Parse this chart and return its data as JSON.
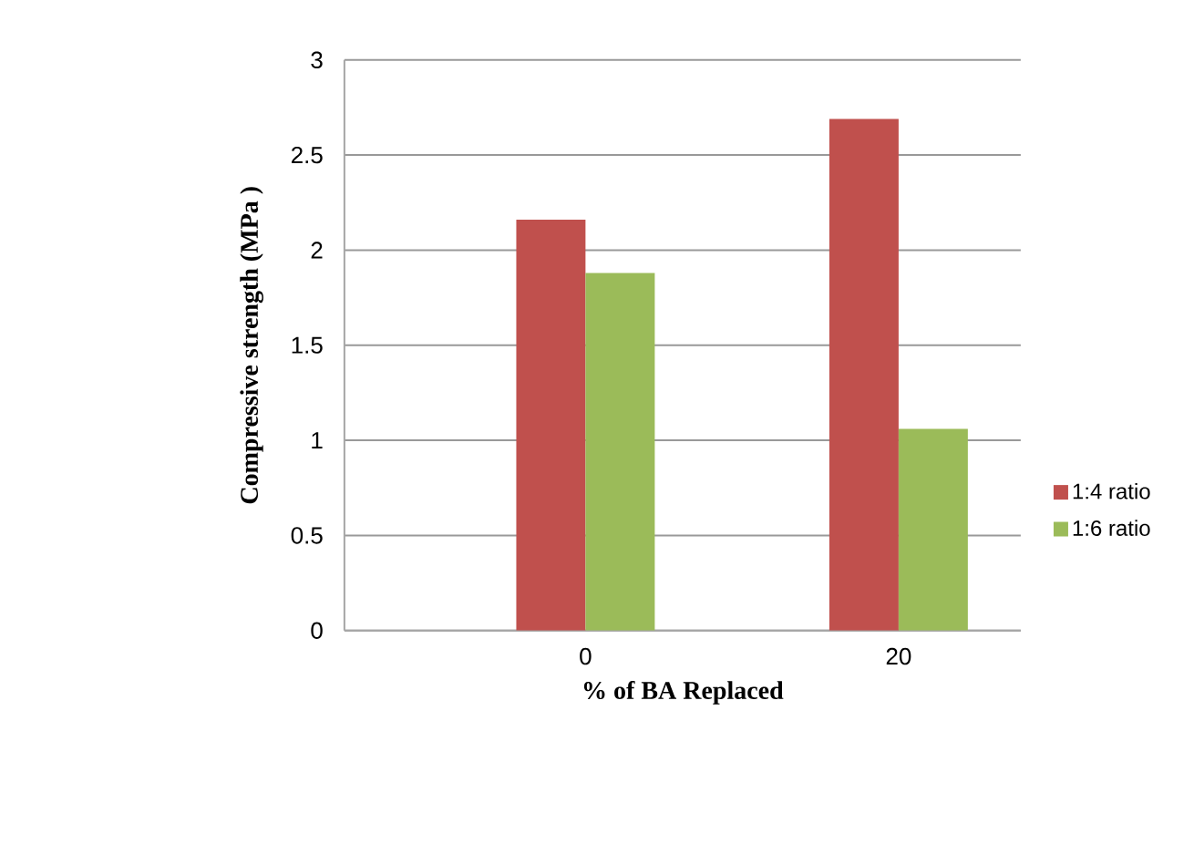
{
  "chart_data": {
    "type": "bar",
    "xlabel": "% of BA Replaced",
    "ylabel": "Compressive  strength  (MPa )",
    "categories": [
      "0",
      "20"
    ],
    "series": [
      {
        "name": "1:4 ratio",
        "color": "#c0504d",
        "values": [
          2.16,
          2.69
        ]
      },
      {
        "name": "1:6 ratio",
        "color": "#9bbb59",
        "values": [
          1.88,
          1.06
        ]
      }
    ],
    "ylim": [
      0,
      3
    ],
    "yticks": [
      0,
      0.5,
      1,
      1.5,
      2,
      2.5,
      3
    ],
    "grid": "y",
    "legend": "right"
  }
}
